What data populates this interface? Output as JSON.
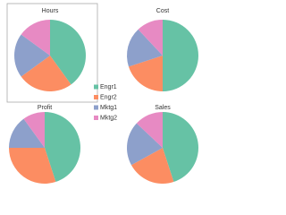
{
  "chart_data": [
    {
      "type": "pie",
      "title": "Hours",
      "categories": [
        "Engr1",
        "Engr2",
        "Mktg1",
        "Mktg2"
      ],
      "values": [
        40,
        25,
        20,
        15
      ],
      "colors": [
        "#66c2a5",
        "#fc8d62",
        "#8da0cb",
        "#e78ac3"
      ],
      "legend": "right"
    },
    {
      "type": "pie",
      "title": "Cost",
      "categories": [
        "Engr1",
        "Engr2",
        "Mktg1",
        "Mktg2"
      ],
      "values": [
        50,
        20,
        18,
        12
      ],
      "colors": [
        "#66c2a5",
        "#fc8d62",
        "#8da0cb",
        "#e78ac3"
      ]
    },
    {
      "type": "pie",
      "title": "Profit",
      "categories": [
        "Engr1",
        "Engr2",
        "Mktg1",
        "Mktg2"
      ],
      "values": [
        45,
        30,
        15,
        10
      ],
      "colors": [
        "#66c2a5",
        "#fc8d62",
        "#8da0cb",
        "#e78ac3"
      ]
    },
    {
      "type": "pie",
      "title": "Sales",
      "categories": [
        "Engr1",
        "Engr2",
        "Mktg1",
        "Mktg2"
      ],
      "values": [
        45,
        22,
        20,
        13
      ],
      "colors": [
        "#66c2a5",
        "#fc8d62",
        "#8da0cb",
        "#e78ac3"
      ]
    }
  ]
}
